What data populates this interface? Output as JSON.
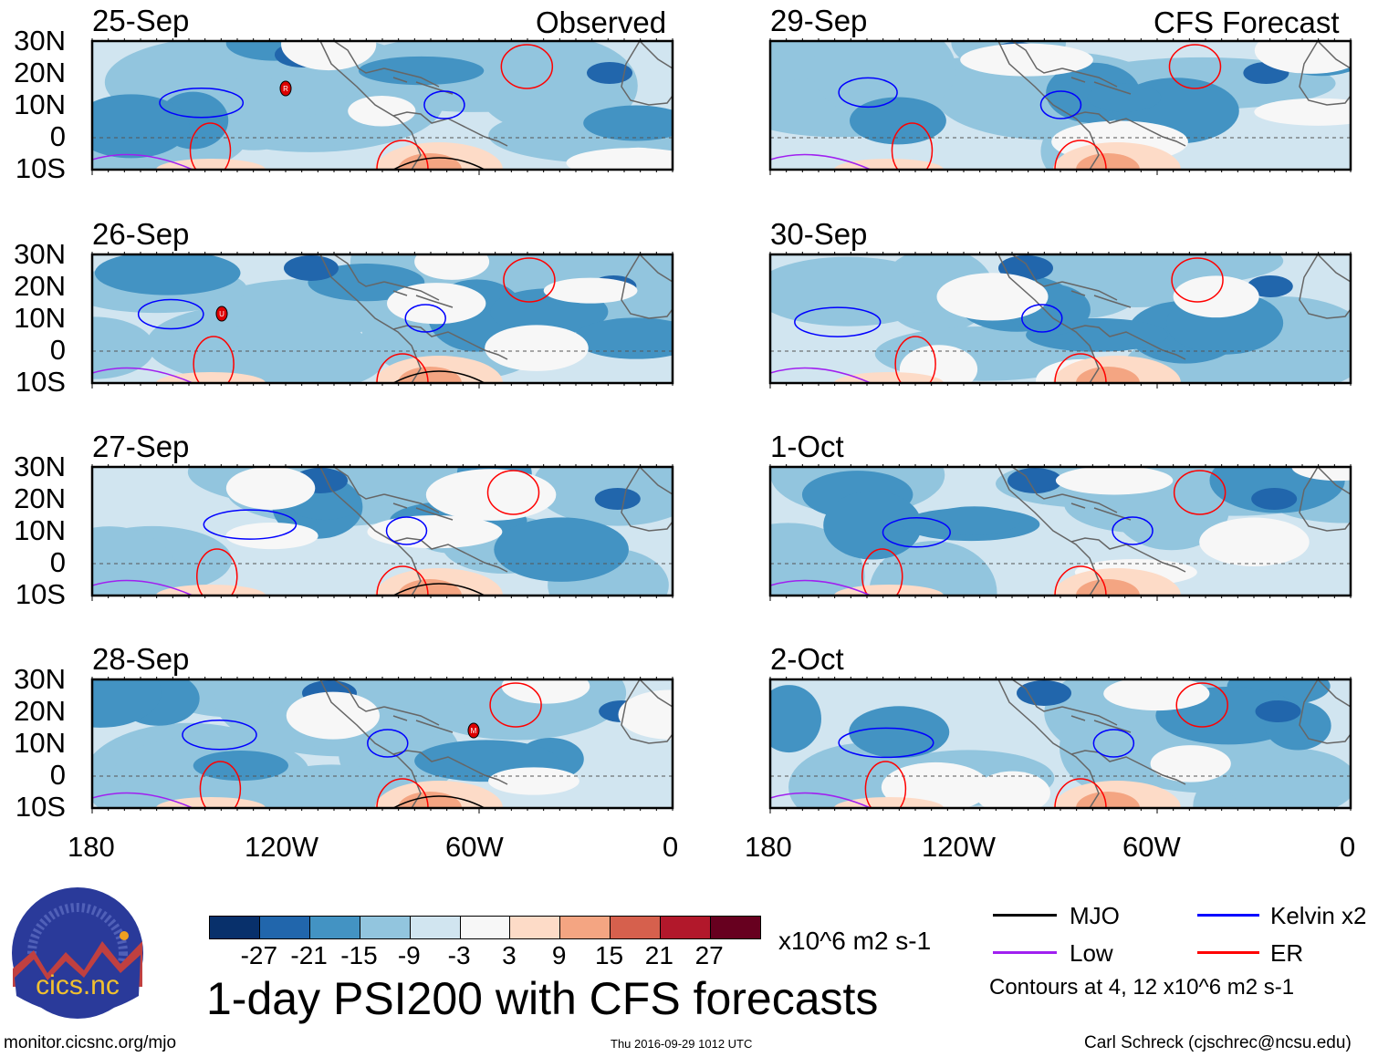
{
  "header": {
    "left_label": "Observed",
    "right_label": "CFS Forecast"
  },
  "panels": {
    "left": [
      {
        "date": "25-Sep",
        "storm": "R"
      },
      {
        "date": "26-Sep",
        "storm": "U"
      },
      {
        "date": "27-Sep",
        "storm": ""
      },
      {
        "date": "28-Sep",
        "storm": "M"
      }
    ],
    "right": [
      {
        "date": "29-Sep"
      },
      {
        "date": "30-Sep"
      },
      {
        "date": "1-Oct"
      },
      {
        "date": "2-Oct"
      }
    ]
  },
  "lat_ticks": [
    "30N",
    "20N",
    "10N",
    "0",
    "10S"
  ],
  "lon_ticks": [
    "180",
    "120W",
    "60W",
    "0"
  ],
  "colorbar": {
    "colors": [
      "#08306b",
      "#2166ac",
      "#4393c3",
      "#92c5de",
      "#d1e5f0",
      "#f7f7f7",
      "#fddbc7",
      "#f4a582",
      "#d6604d",
      "#b2182b",
      "#67001f"
    ],
    "labels": [
      "-27",
      "-21",
      "-15",
      "-9",
      "-3",
      "3",
      "9",
      "15",
      "21",
      "27"
    ],
    "units": "x10^6 m2 s-1"
  },
  "title": "1-day PSI200 with CFS forecasts",
  "legend": {
    "items": [
      {
        "label": "MJO",
        "color": "#000000"
      },
      {
        "label": "Kelvin x2",
        "color": "#0000ff"
      },
      {
        "label": "Low",
        "color": "#a020f0"
      },
      {
        "label": "ER",
        "color": "#ff0000"
      }
    ],
    "contours_note": "Contours at 4, 12 x10^6 m2 s-1"
  },
  "logo": {
    "text": "cics.nc",
    "ring_text": "Cooperative Institute for Climate and Satellites"
  },
  "footer": {
    "url": "monitor.cicsnc.org/mjo",
    "timestamp": "Thu 2016-09-29 1012 UTC",
    "author": "Carl Schreck (cjschrec@ncsu.edu)"
  }
}
